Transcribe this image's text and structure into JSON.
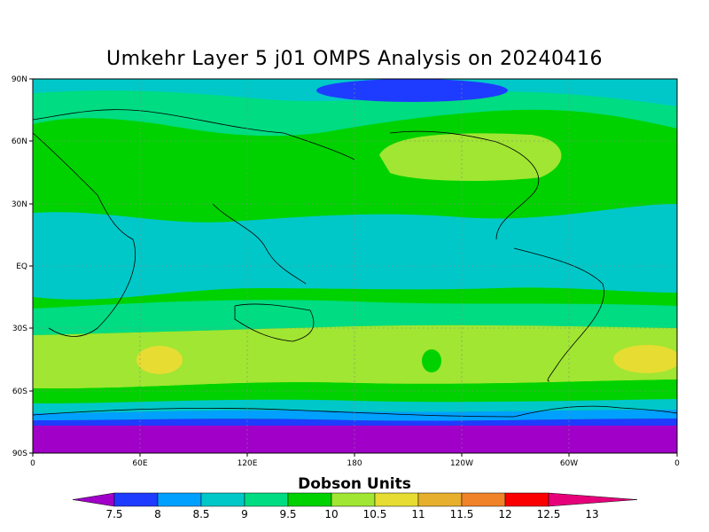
{
  "title": "Umkehr Layer 5 j01 OMPS Analysis on 20240416",
  "map": {
    "y_tick_labels": [
      "90N",
      "60N",
      "30N",
      "EQ",
      "30S",
      "60S",
      "90S"
    ],
    "x_tick_labels": [
      "0",
      "60E",
      "120E",
      "180",
      "120W",
      "60W",
      "0"
    ],
    "projection": "cylindrical equidistant, 0E centered left",
    "grid": "dotted lat/lon lines"
  },
  "colorbar": {
    "title": "Dobson Units",
    "levels": [
      "7.5",
      "8",
      "8.5",
      "9",
      "9.5",
      "10",
      "10.5",
      "11",
      "11.5",
      "12",
      "12.5",
      "13"
    ],
    "colors": [
      "#a000c8",
      "#1e3cff",
      "#00a0ff",
      "#00c8c8",
      "#00dc82",
      "#00d200",
      "#a0e632",
      "#e6dc32",
      "#e6af2d",
      "#f08228",
      "#fa0000",
      "#e6007a"
    ]
  }
}
